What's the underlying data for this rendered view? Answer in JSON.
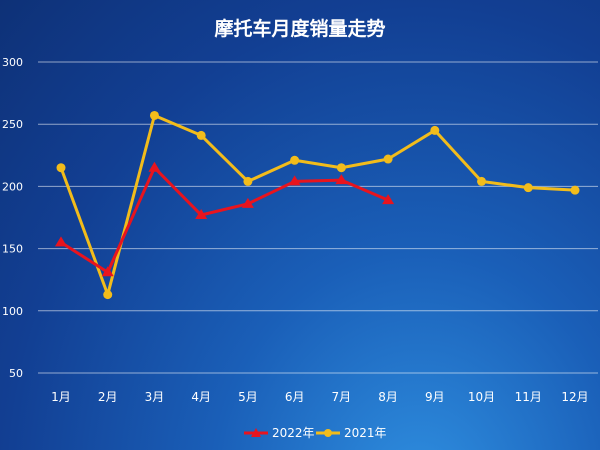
{
  "chart_data": {
    "type": "line",
    "title": "摩托车月度销量走势",
    "categories": [
      "1月",
      "2月",
      "3月",
      "4月",
      "5月",
      "6月",
      "7月",
      "8月",
      "9月",
      "10月",
      "11月",
      "12月"
    ],
    "series": [
      {
        "name": "2022年",
        "color": "#e8141e",
        "marker": "triangle",
        "values": [
          155,
          131,
          215,
          177,
          186,
          204,
          205,
          189,
          null,
          null,
          null,
          null
        ]
      },
      {
        "name": "2021年",
        "color": "#f2bc1b",
        "marker": "circle",
        "values": [
          215,
          113,
          257,
          241,
          204,
          221,
          215,
          222,
          245,
          204,
          199,
          197
        ]
      }
    ],
    "ylim": [
      50,
      300
    ],
    "yticks": [
      50,
      100,
      150,
      200,
      250,
      300
    ],
    "grid": true,
    "legend": "bottom"
  }
}
